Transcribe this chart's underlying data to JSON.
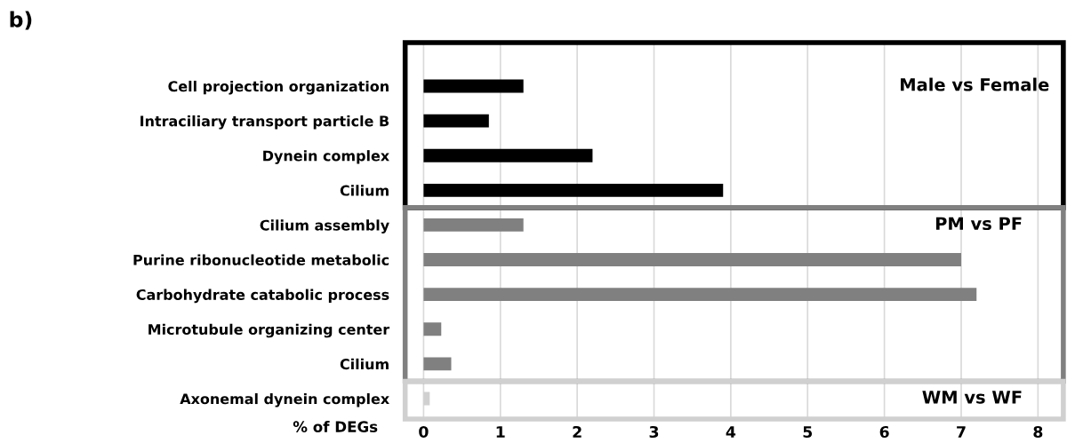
{
  "chart_data": {
    "type": "bar",
    "orientation": "horizontal",
    "title": "b)",
    "xlabel": "% of DEGs",
    "categories": [
      "Cell projection organization",
      "Intraciliary transport particle B",
      "Dynein complex",
      "Cilium",
      "Cilium assembly",
      "Purine ribonucleotide metabolic",
      "Carbohydrate catabolic process",
      "Microtubule organizing center",
      "Cilium",
      "Axonemal dynein complex"
    ],
    "series": [
      {
        "name": "Male vs Female",
        "color": "#000000",
        "values": [
          1.3,
          0.85,
          2.2,
          3.9,
          null,
          null,
          null,
          null,
          null,
          null
        ]
      },
      {
        "name": "PM vs PF",
        "color": "#808080",
        "values": [
          null,
          null,
          null,
          null,
          1.3,
          7.0,
          7.2,
          0.23,
          0.36,
          null
        ]
      },
      {
        "name": "WM vs WF",
        "color": "#d0d0d0",
        "values": [
          null,
          null,
          null,
          null,
          null,
          null,
          null,
          null,
          null,
          0.08
        ]
      }
    ],
    "xlim": [
      -0.25,
      8.35
    ],
    "xticks": [
      0,
      1,
      2,
      3,
      4,
      5,
      6,
      7,
      8
    ],
    "grid": "x",
    "legend": false
  }
}
